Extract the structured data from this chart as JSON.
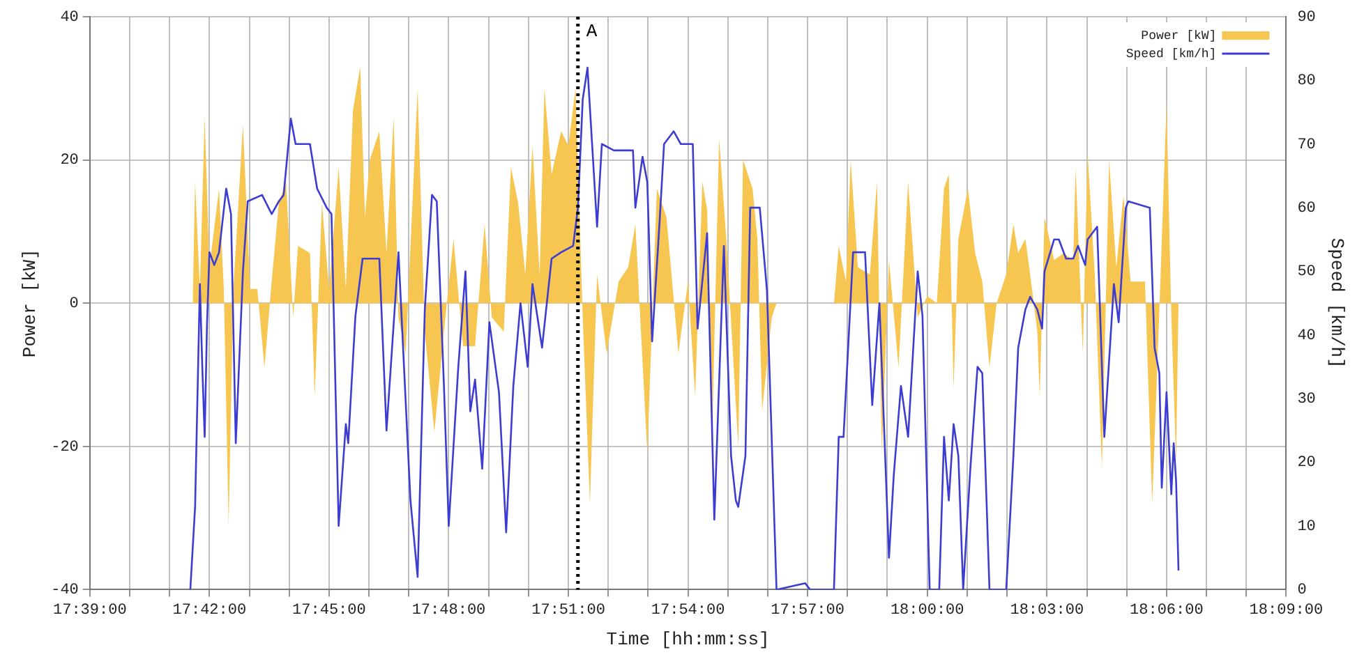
{
  "chart_data": {
    "type": "area",
    "xlabel": "Time [hh:mm:ss]",
    "ylabel": "Power [kW]",
    "y2label": "Speed [km/h]",
    "xlim": [
      17.65,
      18.15
    ],
    "xticks": [
      {
        "value": 17.65,
        "label": "17:39:00"
      },
      {
        "value": 17.6667,
        "label": null
      },
      {
        "value": 17.6833,
        "label": null
      },
      {
        "value": 17.7,
        "label": "17:42:00"
      },
      {
        "value": 17.7167,
        "label": null
      },
      {
        "value": 17.7333,
        "label": null
      },
      {
        "value": 17.75,
        "label": "17:45:00"
      },
      {
        "value": 17.7667,
        "label": null
      },
      {
        "value": 17.7833,
        "label": null
      },
      {
        "value": 17.8,
        "label": "17:48:00"
      },
      {
        "value": 17.8167,
        "label": null
      },
      {
        "value": 17.8333,
        "label": null
      },
      {
        "value": 17.85,
        "label": "17:51:00"
      },
      {
        "value": 17.8667,
        "label": null
      },
      {
        "value": 17.8833,
        "label": null
      },
      {
        "value": 17.9,
        "label": "17:54:00"
      },
      {
        "value": 17.9167,
        "label": null
      },
      {
        "value": 17.9333,
        "label": null
      },
      {
        "value": 17.95,
        "label": "17:57:00"
      },
      {
        "value": 17.9667,
        "label": null
      },
      {
        "value": 17.9833,
        "label": null
      },
      {
        "value": 18.0,
        "label": "18:00:00"
      },
      {
        "value": 18.0167,
        "label": null
      },
      {
        "value": 18.0333,
        "label": null
      },
      {
        "value": 18.05,
        "label": "18:03:00"
      },
      {
        "value": 18.0667,
        "label": null
      },
      {
        "value": 18.0833,
        "label": null
      },
      {
        "value": 18.1,
        "label": "18:06:00"
      },
      {
        "value": 18.1167,
        "label": null
      },
      {
        "value": 18.1333,
        "label": null
      },
      {
        "value": 18.15,
        "label": "18:09:00"
      }
    ],
    "ylim": [
      -40,
      40
    ],
    "yticks": [
      -40,
      -20,
      0,
      20,
      40
    ],
    "y2lim": [
      0,
      90
    ],
    "y2ticks": [
      0,
      10,
      20,
      30,
      40,
      50,
      60,
      70,
      80,
      90
    ],
    "grid": true,
    "legend": "top right",
    "marker": "none",
    "ref_lines": [
      {
        "axis": "x",
        "value": 17.854,
        "label": "A",
        "color": "#000000",
        "line_style": "dotted"
      }
    ],
    "series": [
      {
        "name": "Power [kW]",
        "type": "area",
        "color": "#f7c651",
        "x": [
          17.693,
          17.694,
          17.696,
          17.698,
          17.7,
          17.704,
          17.706,
          17.708,
          17.71,
          17.714,
          17.717,
          17.72,
          17.723,
          17.726,
          17.729,
          17.732,
          17.735,
          17.737,
          17.742,
          17.744,
          17.747,
          17.75,
          17.754,
          17.757,
          17.76,
          17.763,
          17.765,
          17.767,
          17.771,
          17.774,
          17.777,
          17.779,
          17.782,
          17.787,
          17.79,
          17.794,
          17.798,
          17.802,
          17.806,
          17.811,
          17.815,
          17.818,
          17.823,
          17.826,
          17.829,
          17.832,
          17.835,
          17.838,
          17.84,
          17.843,
          17.847,
          17.85,
          17.853,
          17.856,
          17.859,
          17.862,
          17.866,
          17.871,
          17.875,
          17.878,
          17.883,
          17.887,
          17.891,
          17.896,
          17.9,
          17.903,
          17.906,
          17.908,
          17.91,
          17.913,
          17.916,
          17.921,
          17.923,
          17.927,
          17.929,
          17.931,
          17.935,
          17.937,
          17.949,
          17.961,
          17.963,
          17.966,
          17.968,
          17.971,
          17.976,
          17.979,
          17.981,
          17.984,
          17.988,
          17.992,
          17.996,
          18.0,
          18.004,
          18.007,
          18.009,
          18.011,
          18.013,
          18.017,
          18.02,
          18.023,
          18.026,
          18.029,
          18.033,
          18.036,
          18.038,
          18.041,
          18.043,
          18.046,
          18.047,
          18.049,
          18.053,
          18.057,
          18.061,
          18.062,
          18.065,
          18.067,
          18.07,
          18.073,
          18.076,
          18.079,
          18.082,
          18.085,
          18.091,
          18.094,
          18.097,
          18.1,
          18.102,
          18.104,
          18.105
        ],
        "values": [
          0,
          17,
          2,
          26,
          5,
          16,
          2,
          -31,
          2,
          25,
          2,
          2,
          -9,
          3,
          14,
          17,
          -2,
          8,
          7,
          -13,
          14,
          2,
          19,
          2,
          27,
          33,
          12,
          20,
          24,
          7,
          26,
          -2,
          -7,
          30,
          -4,
          -18,
          -4,
          9,
          -6,
          -6,
          11,
          -2,
          -4,
          19,
          14,
          4,
          22,
          4,
          30,
          18,
          24,
          22,
          30,
          -2,
          -28,
          4,
          -7,
          3,
          5,
          11,
          -21,
          16,
          12,
          -7,
          3,
          -13,
          17,
          13,
          -20,
          23,
          9,
          -20,
          20,
          16,
          9,
          -15,
          -2,
          0,
          0,
          0,
          8,
          3,
          20,
          5,
          4,
          17,
          -21,
          6,
          -9,
          17,
          -2,
          1,
          0,
          16,
          18,
          -12,
          9,
          16,
          7,
          3,
          -9,
          0,
          4,
          11,
          7,
          9,
          4,
          -4,
          -13,
          12,
          6,
          7,
          6,
          19,
          -7,
          21,
          4,
          -23,
          20,
          5,
          15,
          3,
          3,
          -28,
          -1,
          28,
          -2,
          -22,
          0
        ]
      },
      {
        "name": "Speed [km/h]",
        "type": "line",
        "axis": "y2",
        "color": "#3c3cd2",
        "x": [
          17.692,
          17.694,
          17.696,
          17.697,
          17.698,
          17.699,
          17.7,
          17.702,
          17.704,
          17.707,
          17.709,
          17.711,
          17.714,
          17.716,
          17.722,
          17.726,
          17.729,
          17.731,
          17.734,
          17.736,
          17.742,
          17.745,
          17.749,
          17.751,
          17.754,
          17.757,
          17.758,
          17.761,
          17.764,
          17.771,
          17.774,
          17.779,
          17.784,
          17.787,
          17.79,
          17.793,
          17.795,
          17.798,
          17.8,
          17.804,
          17.807,
          17.809,
          17.811,
          17.814,
          17.817,
          17.821,
          17.824,
          17.827,
          17.83,
          17.833,
          17.835,
          17.839,
          17.843,
          17.847,
          17.852,
          17.854,
          17.856,
          17.858,
          17.862,
          17.864,
          17.869,
          17.877,
          17.878,
          17.881,
          17.883,
          17.885,
          17.888,
          17.89,
          17.894,
          17.897,
          17.902,
          17.904,
          17.908,
          17.911,
          17.915,
          17.918,
          17.92,
          17.921,
          17.924,
          17.926,
          17.93,
          17.933,
          17.937,
          17.949,
          17.951,
          17.961,
          17.963,
          17.965,
          17.969,
          17.974,
          17.977,
          17.98,
          17.984,
          17.986,
          17.989,
          17.992,
          17.996,
          17.998,
          18.001,
          18.005,
          18.007,
          18.009,
          18.011,
          18.013,
          18.015,
          18.018,
          18.021,
          18.023,
          18.026,
          18.03,
          18.033,
          18.036,
          18.038,
          18.041,
          18.043,
          18.046,
          18.048,
          18.049,
          18.053,
          18.055,
          18.058,
          18.061,
          18.063,
          18.066,
          18.067,
          18.071,
          18.074,
          18.078,
          18.08,
          18.083,
          18.084,
          18.093,
          18.095,
          18.097,
          18.098,
          18.1,
          18.102,
          18.103,
          18.104,
          18.105
        ],
        "values": [
          0,
          13,
          48,
          35,
          24,
          42,
          53,
          51,
          53,
          63,
          59,
          23,
          50,
          61,
          62,
          59,
          61,
          62,
          74,
          70,
          70,
          63,
          60,
          59,
          10,
          26,
          23,
          43,
          52,
          52,
          25,
          53,
          14,
          2,
          44,
          62,
          61,
          32,
          10,
          35,
          50,
          28,
          33,
          19,
          42,
          31,
          9,
          32,
          45,
          35,
          48,
          38,
          52,
          53,
          54,
          60,
          77,
          82,
          57,
          70,
          69,
          69,
          60,
          68,
          64,
          39,
          57,
          70,
          72,
          70,
          70,
          41,
          56,
          11,
          54,
          21,
          14,
          13,
          21,
          60,
          60,
          47,
          0,
          1,
          0,
          0,
          24,
          24,
          53,
          53,
          29,
          45,
          5,
          18,
          32,
          24,
          50,
          43,
          0,
          0,
          24,
          14,
          26,
          21,
          0,
          19,
          35,
          34,
          0,
          0,
          0,
          21,
          38,
          44,
          46,
          44,
          41,
          50,
          55,
          55,
          52,
          52,
          54,
          51,
          55,
          57,
          24,
          48,
          42,
          60,
          61,
          60,
          38,
          34,
          16,
          31,
          15,
          23,
          17,
          3
        ]
      }
    ]
  }
}
